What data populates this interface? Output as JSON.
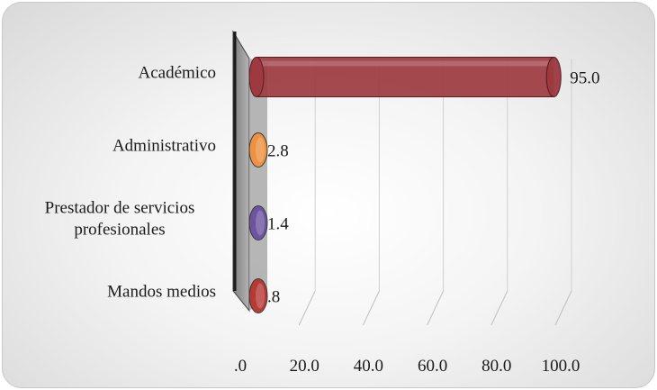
{
  "chart_data": {
    "type": "bar",
    "orientation": "horizontal",
    "categories": [
      "Académico",
      "Administrativo",
      "Prestador de servicios profesionales",
      "Mandos medios"
    ],
    "category_label_lines": [
      [
        "Académico"
      ],
      [
        "Administrativo"
      ],
      [
        "Prestador de servicios",
        "profesionales"
      ],
      [
        "Mandos medios"
      ]
    ],
    "values": [
      95.0,
      2.8,
      1.4,
      0.8
    ],
    "value_labels": [
      "95.0",
      "2.8",
      "1.4",
      ".8"
    ],
    "colors": [
      "#9c3a3f",
      "#f0913a",
      "#6a4f9e",
      "#b5332f"
    ],
    "xlim": [
      0,
      100
    ],
    "x_ticks": [
      0,
      20,
      40,
      60,
      80,
      100
    ],
    "x_tick_labels": [
      ".0",
      "20.0",
      "40.0",
      "60.0",
      "80.0",
      "100.0"
    ],
    "title": "",
    "xlabel": "",
    "ylabel": "",
    "grid": true,
    "style": "3d-cylinder"
  }
}
